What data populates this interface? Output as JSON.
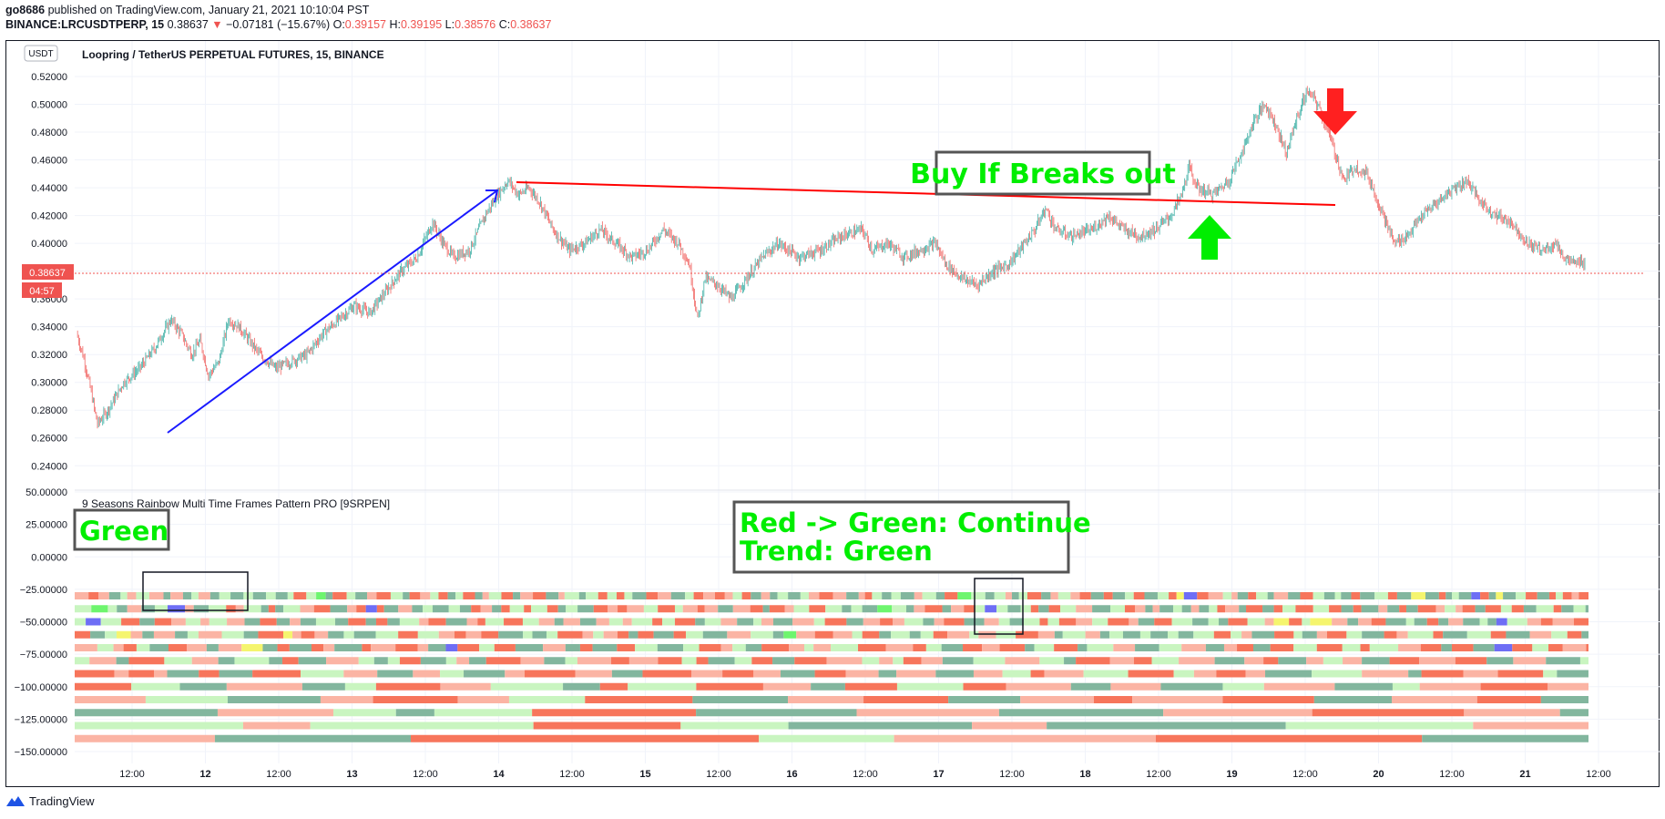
{
  "header": {
    "user": "go8686",
    "published_text": "published on TradingView.com, January 21, 2021 10:10:04 PST",
    "symbol": "BINANCE:LRCUSDTPERP, 15",
    "last": "0.38637",
    "change_arrow": "▼",
    "change": "−0.07181 (−15.67%)",
    "o_label": "O:",
    "o_value": "0.39157",
    "h_label": "H:",
    "h_value": "0.39195",
    "l_label": "L:",
    "l_value": "0.38576",
    "c_label": "C:",
    "c_value": "0.38637"
  },
  "currency_badge": "USDT",
  "price_badge": "0.38637",
  "countdown_badge": "04:57",
  "footer": {
    "brand": "TradingView",
    "logo_icon": "tradingview-logo-icon"
  },
  "colors": {
    "up": "#26a69a",
    "down": "#ef5350",
    "trendline_blue": "#1a1aff",
    "trendline_red": "#ff0000",
    "annot_green": "#00ff00",
    "annot_red": "#ff0000",
    "grid": "#f0f3fa",
    "bar_red": "#f7755b",
    "bar_pink": "#fbb4a4",
    "bar_darkgreen": "#82b69e",
    "bar_lightgreen": "#c9f5c0",
    "bar_blue": "#6e6ef5",
    "bar_yellow": "#f5f56e",
    "bar_lime": "#6ef56e"
  },
  "chart_data": [
    {
      "type": "candlestick",
      "title": "Loopring / TetherUS PERPETUAL FUTURES, 15, BINANCE",
      "y_ticks": [
        "0.52000",
        "0.50000",
        "0.48000",
        "0.46000",
        "0.44000",
        "0.42000",
        "0.40000",
        "0.38000",
        "0.36000",
        "0.34000",
        "0.32000",
        "0.30000",
        "0.28000",
        "0.26000",
        "0.24000"
      ],
      "ylim": [
        0.24,
        0.53
      ],
      "x_ticks": [
        "12:00",
        "12",
        "12:00",
        "13",
        "12:00",
        "14",
        "12:00",
        "15",
        "12:00",
        "16",
        "12:00",
        "17",
        "12:00",
        "18",
        "12:00",
        "19",
        "12:00",
        "20",
        "12:00",
        "21",
        "12:00"
      ],
      "last_price": 0.38637,
      "price_path": [
        [
          0,
          0.335
        ],
        [
          6,
          0.32
        ],
        [
          12,
          0.3
        ],
        [
          20,
          0.27
        ],
        [
          30,
          0.28
        ],
        [
          45,
          0.3
        ],
        [
          60,
          0.31
        ],
        [
          75,
          0.325
        ],
        [
          90,
          0.345
        ],
        [
          100,
          0.335
        ],
        [
          110,
          0.32
        ],
        [
          118,
          0.33
        ],
        [
          126,
          0.305
        ],
        [
          136,
          0.315
        ],
        [
          145,
          0.345
        ],
        [
          155,
          0.34
        ],
        [
          165,
          0.33
        ],
        [
          175,
          0.32
        ],
        [
          190,
          0.31
        ],
        [
          205,
          0.315
        ],
        [
          220,
          0.32
        ],
        [
          235,
          0.335
        ],
        [
          250,
          0.345
        ],
        [
          265,
          0.355
        ],
        [
          280,
          0.35
        ],
        [
          295,
          0.365
        ],
        [
          310,
          0.38
        ],
        [
          325,
          0.39
        ],
        [
          340,
          0.415
        ],
        [
          350,
          0.4
        ],
        [
          360,
          0.39
        ],
        [
          375,
          0.395
        ],
        [
          390,
          0.42
        ],
        [
          402,
          0.435
        ],
        [
          412,
          0.445
        ],
        [
          422,
          0.435
        ],
        [
          432,
          0.44
        ],
        [
          442,
          0.43
        ],
        [
          455,
          0.41
        ],
        [
          470,
          0.395
        ],
        [
          485,
          0.4
        ],
        [
          500,
          0.41
        ],
        [
          515,
          0.4
        ],
        [
          530,
          0.39
        ],
        [
          545,
          0.395
        ],
        [
          560,
          0.41
        ],
        [
          575,
          0.4
        ],
        [
          585,
          0.385
        ],
        [
          593,
          0.345
        ],
        [
          600,
          0.375
        ],
        [
          612,
          0.37
        ],
        [
          625,
          0.36
        ],
        [
          640,
          0.375
        ],
        [
          655,
          0.39
        ],
        [
          670,
          0.4
        ],
        [
          690,
          0.39
        ],
        [
          710,
          0.395
        ],
        [
          730,
          0.405
        ],
        [
          750,
          0.41
        ],
        [
          760,
          0.395
        ],
        [
          775,
          0.4
        ],
        [
          790,
          0.39
        ],
        [
          805,
          0.395
        ],
        [
          820,
          0.4
        ],
        [
          830,
          0.385
        ],
        [
          845,
          0.375
        ],
        [
          860,
          0.37
        ],
        [
          875,
          0.38
        ],
        [
          890,
          0.385
        ],
        [
          905,
          0.4
        ],
        [
          915,
          0.41
        ],
        [
          925,
          0.425
        ],
        [
          935,
          0.41
        ],
        [
          950,
          0.405
        ],
        [
          970,
          0.41
        ],
        [
          985,
          0.42
        ],
        [
          1000,
          0.41
        ],
        [
          1015,
          0.405
        ],
        [
          1030,
          0.41
        ],
        [
          1045,
          0.42
        ],
        [
          1055,
          0.435
        ],
        [
          1062,
          0.455
        ],
        [
          1070,
          0.44
        ],
        [
          1085,
          0.435
        ],
        [
          1100,
          0.445
        ],
        [
          1115,
          0.47
        ],
        [
          1125,
          0.49
        ],
        [
          1135,
          0.5
        ],
        [
          1145,
          0.485
        ],
        [
          1155,
          0.465
        ],
        [
          1165,
          0.49
        ],
        [
          1175,
          0.51
        ],
        [
          1185,
          0.5
        ],
        [
          1195,
          0.48
        ],
        [
          1210,
          0.445
        ],
        [
          1220,
          0.455
        ],
        [
          1232,
          0.45
        ],
        [
          1245,
          0.425
        ],
        [
          1258,
          0.4
        ],
        [
          1270,
          0.405
        ],
        [
          1285,
          0.42
        ],
        [
          1300,
          0.43
        ],
        [
          1315,
          0.44
        ],
        [
          1328,
          0.445
        ],
        [
          1340,
          0.43
        ],
        [
          1355,
          0.42
        ],
        [
          1370,
          0.415
        ],
        [
          1385,
          0.4
        ],
        [
          1400,
          0.395
        ],
        [
          1412,
          0.4
        ],
        [
          1420,
          0.39
        ],
        [
          1430,
          0.385
        ],
        [
          1440,
          0.3875
        ]
      ],
      "annotations": [
        {
          "name": "buy-if-breaks-out-label",
          "text": "Buy If Breaks out"
        }
      ]
    },
    {
      "type": "heatmap",
      "title": "9 Seasons Rainbow Multi Time Frames Pattern PRO [9SRPEN]",
      "y_ticks": [
        "50.00000",
        "25.00000",
        "0.00000",
        "−25.00000",
        "−50.00000",
        "−75.00000",
        "−100.00000",
        "−125.00000",
        "−150.00000"
      ],
      "ylim": [
        -160,
        50
      ],
      "row_values": [
        -30,
        -40,
        -50,
        -60,
        -70,
        -80,
        -90,
        -100,
        -110,
        -120,
        -130,
        -140
      ],
      "annotations": [
        {
          "name": "green-label",
          "text": "Green"
        },
        {
          "name": "continue-label",
          "lines": [
            "Red -> Green: Continue",
            "Trend: Green"
          ]
        }
      ]
    }
  ]
}
